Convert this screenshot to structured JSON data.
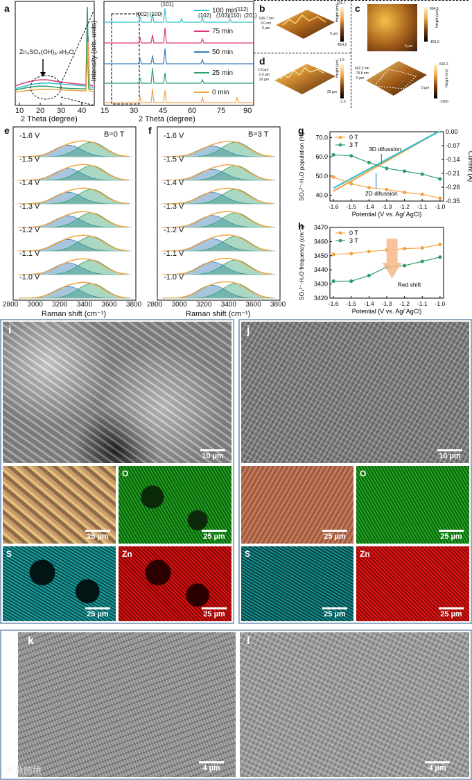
{
  "figure": {
    "panel_labels": {
      "a": "a",
      "b": "b",
      "c": "c",
      "d": "d",
      "e": "e",
      "f": "f",
      "g": "g",
      "h": "h",
      "i": "i",
      "j": "j",
      "k": "k",
      "l": "l"
    },
    "panel_a": {
      "left_annotation": "Zn₄SO₄(OH)₆·xH₂O",
      "left_xlabel": "2 Theta (degree)",
      "left_xticks": [
        "10",
        "20",
        "30",
        "40"
      ],
      "right_xlabel": "2 Theta (degree)",
      "right_ylabel": "Intensity (arb. units)",
      "right_xticks": [
        "15",
        "30",
        "45",
        "60",
        "75",
        "90"
      ],
      "peaks": [
        "(002)",
        "(100)",
        "(101)",
        "(102)",
        "(103)",
        "(110)",
        "(112)",
        "(201)"
      ],
      "legend": [
        "100 min",
        "75 min",
        "50 min",
        "25 min",
        "0 min"
      ],
      "colors": [
        "#33c1cf",
        "#e0357a",
        "#3a7fb8",
        "#2e9e6a",
        "#f2a444"
      ]
    },
    "afm": {
      "b": {
        "top": "626.7",
        "bottom": "-614.2",
        "unit": "Height (nm)",
        "axis1": "626.7 nm",
        "axis2": "5 µm",
        "axis3": "5 µm",
        "axis4": "0.0 nm"
      },
      "c": {
        "top": "804.8",
        "bottom": "-811.6",
        "scale": "4 µm",
        "unit": "Height (nm)",
        "top2": "692.2",
        "bottom2": "-1000",
        "axis1": "692.2 nm",
        "axis2": "-79.8 nm",
        "axis3": "5 µm",
        "axis4": "5 µm"
      },
      "d": {
        "top": "1.5",
        "bottom": "-1.5",
        "unit": "Height (µm)",
        "axis1": "1.5 µm",
        "axis2": "-1.0 µm",
        "axis3": "20 µm",
        "axis4": "20 µm"
      }
    },
    "panel_e": {
      "field": "B=0 T",
      "voltages": [
        "-1.6 V",
        "-1.5 V",
        "-1.4 V",
        "-1.3 V",
        "-1.2 V",
        "-1.1 V",
        "-1.0 V"
      ],
      "xlabel": "Raman shift (cm⁻¹)",
      "xticks": [
        "2800",
        "3000",
        "3200",
        "3400",
        "3600",
        "3800"
      ]
    },
    "panel_f": {
      "field": "B=3 T",
      "voltages": [
        "-1.6 V",
        "-1.5 V",
        "-1.4 V",
        "-1.3 V",
        "-1.2 V",
        "-1.1 V",
        "-1.0 V"
      ],
      "xlabel": "Raman shift (cm⁻¹)",
      "xticks": [
        "2800",
        "3000",
        "3200",
        "3400",
        "3600",
        "3800"
      ]
    },
    "panel_i": {
      "sem_scale": "10 µm",
      "eds": [
        {
          "el": "",
          "scale": "25 µm"
        },
        {
          "el": "O",
          "scale": "25 µm"
        },
        {
          "el": "S",
          "scale": "25 µm"
        },
        {
          "el": "Zn",
          "scale": "25 µm"
        }
      ]
    },
    "panel_j": {
      "sem_scale": "10 µm",
      "eds": [
        {
          "el": "",
          "scale": "25 µm"
        },
        {
          "el": "O",
          "scale": "25 µm"
        },
        {
          "el": "S",
          "scale": "25 µm"
        },
        {
          "el": "Zn",
          "scale": "25 µm"
        }
      ]
    },
    "panel_k": {
      "scale": "4 µm"
    },
    "panel_l": {
      "scale": "4 µm"
    },
    "watermark": "大数跨境"
  },
  "chart_data": [
    {
      "id": "g",
      "type": "line",
      "xlabel": "Potential (V vs. Ag/ AgCl)",
      "ylabel": "SO₄²⁻-H₂O population (%)",
      "ylabel_right": "Current (A)",
      "x": [
        -1.6,
        -1.5,
        -1.4,
        -1.3,
        -1.2,
        -1.1,
        -1.0
      ],
      "xticks": [
        "-1.6",
        "-1.5",
        "-1.4",
        "-1.3",
        "-1.2",
        "-1.1",
        "-1.0"
      ],
      "ylim": [
        37,
        73
      ],
      "yticks": [
        "40.0",
        "50.0",
        "60.0",
        "70.0"
      ],
      "ylim_right": [
        -0.35,
        0.0
      ],
      "yticks_right": [
        "0.00",
        "-0.07",
        "-0.14",
        "-0.21",
        "-0.28",
        "-0.35"
      ],
      "series": [
        {
          "name": "0 T",
          "color": "#f2a444",
          "values": [
            49.5,
            46.0,
            44.0,
            43.0,
            41.5,
            40.5,
            38.5
          ]
        },
        {
          "name": "3 T",
          "color": "#2e9e6a",
          "values": [
            61.0,
            60.5,
            57.0,
            54.0,
            52.5,
            51.0,
            48.5
          ]
        }
      ],
      "current_curves": [
        {
          "name": "0 T",
          "color": "#f2a444",
          "x": [
            -1.6,
            -1.02,
            -1.0
          ],
          "y": [
            -0.3,
            -0.005,
            0.0
          ]
        },
        {
          "name": "3 T",
          "color": "#33c1cf",
          "x": [
            -1.6,
            -1.02,
            -1.0
          ],
          "y": [
            -0.285,
            -0.005,
            0.0
          ]
        }
      ],
      "annotations": [
        "3D difussion",
        "2D difussion"
      ]
    },
    {
      "id": "h",
      "type": "line",
      "xlabel": "Potential (V vs. Ag/ AgCl)",
      "ylabel": "SO₄²⁻-H₂O frequency (cm⁻¹)",
      "x": [
        -1.6,
        -1.5,
        -1.4,
        -1.3,
        -1.2,
        -1.1,
        -1.0
      ],
      "xticks": [
        "-1.6",
        "-1.5",
        "-1.4",
        "-1.3",
        "-1.2",
        "-1.1",
        "-1.0"
      ],
      "ylim": [
        3420,
        3470
      ],
      "yticks": [
        "3420",
        "3430",
        "3440",
        "3450",
        "3460",
        "3470"
      ],
      "series": [
        {
          "name": "0 T",
          "color": "#f2a444",
          "values": [
            3451,
            3451.5,
            3453,
            3454,
            3455,
            3455.5,
            3458
          ]
        },
        {
          "name": "3 T",
          "color": "#2e9e6a",
          "values": [
            3432,
            3432,
            3436,
            3442,
            3443,
            3446,
            3449
          ]
        }
      ],
      "annotations": [
        "Red shift"
      ]
    }
  ]
}
